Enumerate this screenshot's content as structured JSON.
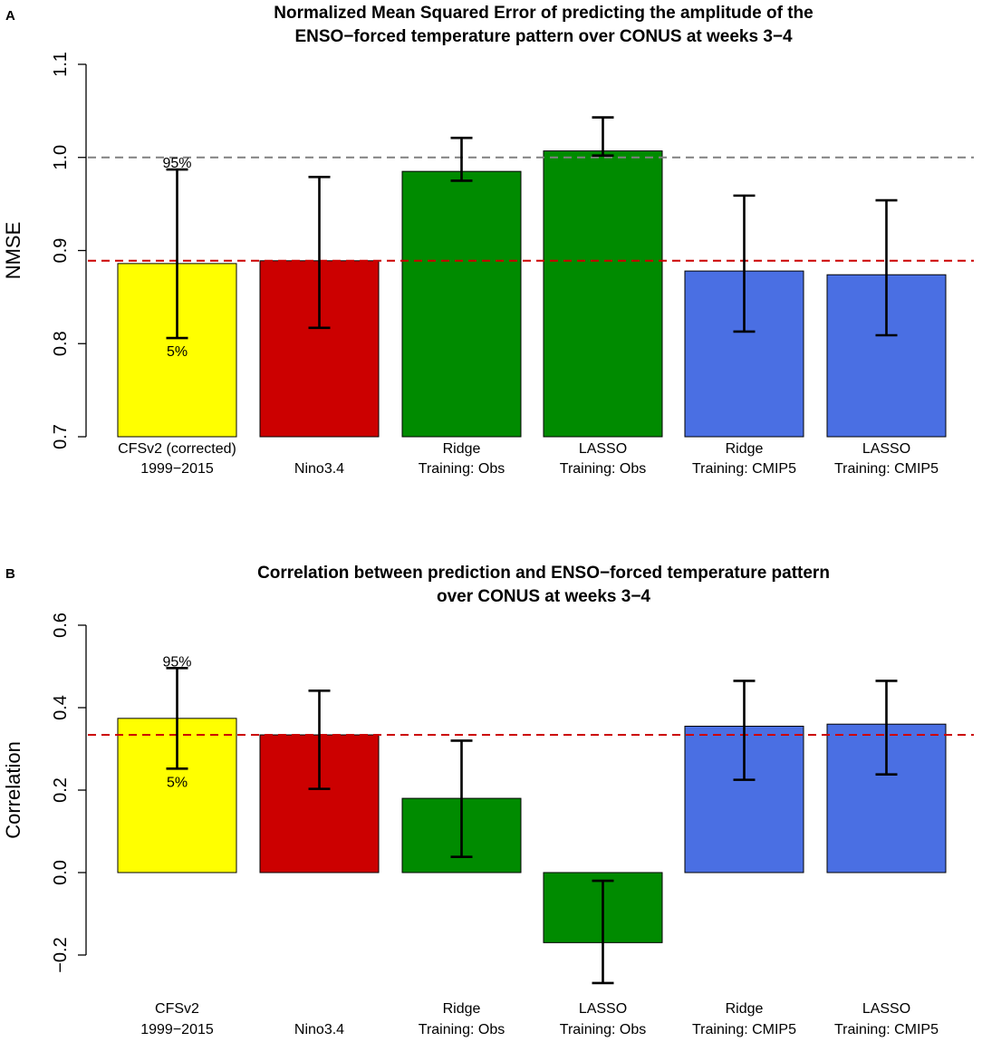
{
  "chart_data": [
    {
      "panel": "A",
      "type": "bar",
      "title": [
        "Normalized Mean Squared Error of predicting the amplitude of the",
        "ENSO−forced temperature pattern over CONUS at weeks 3−4"
      ],
      "ylabel": "NMSE",
      "ylim": [
        0.7,
        1.1
      ],
      "yticks": [
        "0.7",
        "0.8",
        "0.9",
        "1.0",
        "1.1"
      ],
      "categories": [
        [
          "CFSv2 (corrected)",
          "1999−2015"
        ],
        [
          "Nino3.4"
        ],
        [
          "Ridge",
          "Training: Obs"
        ],
        [
          "LASSO",
          "Training: Obs"
        ],
        [
          "Ridge",
          "Training: CMIP5"
        ],
        [
          "LASSO",
          "Training: CMIP5"
        ]
      ],
      "values": [
        0.886,
        0.889,
        0.985,
        1.007,
        0.878,
        0.874
      ],
      "error_low": [
        0.806,
        0.817,
        0.975,
        1.002,
        0.813,
        0.809
      ],
      "error_high": [
        0.987,
        0.979,
        1.021,
        1.043,
        0.959,
        0.954
      ],
      "colors": [
        "#ffff00",
        "#cc0000",
        "#008b00",
        "#008b00",
        "#4a6fe3",
        "#4a6fe3"
      ],
      "reference_lines": [
        {
          "value": 1.0,
          "color": "#808080"
        },
        {
          "value": 0.889,
          "color": "#cc0000"
        }
      ],
      "annotations": {
        "high": "95%",
        "low": "5%"
      }
    },
    {
      "panel": "B",
      "type": "bar",
      "title": [
        "Correlation between prediction and ENSO−forced temperature pattern",
        "over CONUS at weeks 3−4"
      ],
      "ylabel": "Correlation",
      "ylim": [
        -0.2,
        0.6
      ],
      "yticks": [
        "−0.2",
        "0.0",
        "0.2",
        "0.4",
        "0.6"
      ],
      "categories": [
        [
          "CFSv2",
          "1999−2015"
        ],
        [
          "Nino3.4"
        ],
        [
          "Ridge",
          "Training: Obs"
        ],
        [
          "LASSO",
          "Training: Obs"
        ],
        [
          "Ridge",
          "Training: CMIP5"
        ],
        [
          "LASSO",
          "Training: CMIP5"
        ]
      ],
      "values": [
        0.374,
        0.334,
        0.18,
        -0.17,
        0.355,
        0.36
      ],
      "error_low": [
        0.252,
        0.203,
        0.038,
        -0.268,
        0.225,
        0.238
      ],
      "error_high": [
        0.496,
        0.441,
        0.32,
        -0.02,
        0.465,
        0.465
      ],
      "colors": [
        "#ffff00",
        "#cc0000",
        "#008b00",
        "#008b00",
        "#4a6fe3",
        "#4a6fe3"
      ],
      "reference_lines": [
        {
          "value": 0.334,
          "color": "#cc0000"
        }
      ],
      "annotations": {
        "high": "95%",
        "low": "5%"
      }
    }
  ]
}
